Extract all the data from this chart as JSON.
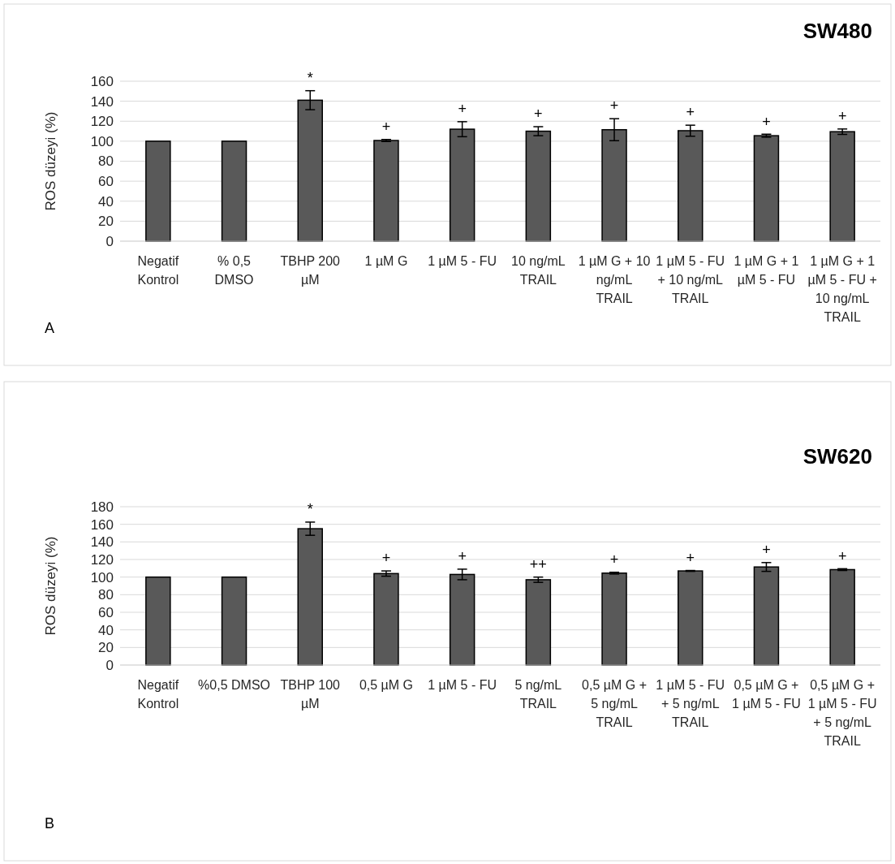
{
  "chart_data": [
    {
      "type": "bar",
      "title": "SW480",
      "subtitle": "A",
      "ylabel": "ROS düzeyi (%)",
      "categories": [
        "Negatif Kontrol",
        "% 0,5 DMSO",
        "TBHP 200 µM",
        "1 µM G",
        "1 µM 5 - FU",
        "10 ng/mL TRAIL",
        "1 µM G + 10 ng/mL TRAIL",
        "1 µM 5 - FU + 10 ng/mL TRAIL",
        "1 µM G + 1 µM 5 - FU",
        "1 µM G + 1 µM 5 - FU + 10 ng/mL TRAIL"
      ],
      "values": [
        100,
        100,
        141,
        100.7,
        112,
        110,
        111.5,
        110.5,
        105.5,
        109.5
      ],
      "errors": [
        null,
        null,
        9.5,
        1,
        7.5,
        4.5,
        11,
        5.5,
        1.5,
        2.7
      ],
      "color": "#595959",
      "ylim": [
        0,
        160
      ],
      "yticks": [
        0,
        20,
        40,
        60,
        80,
        100,
        120,
        140,
        160
      ],
      "grid": "y",
      "annotations": [
        "*",
        "+",
        "+",
        "+",
        "+",
        "+",
        "+",
        "+"
      ]
    },
    {
      "type": "bar",
      "title": "SW620",
      "subtitle": "B",
      "ylabel": "ROS düzeyi (%)",
      "categories": [
        "Negatif Kontrol",
        "%0,5 DMSO",
        "TBHP 100 µM",
        "0,5 µM G",
        "1 µM 5 - FU",
        "5 ng/mL TRAIL",
        "0,5 µM G + 5 ng/mL TRAIL",
        "1 µM 5 - FU + 5 ng/mL TRAIL",
        "0,5 µM G + 1 µM 5 - FU",
        "0,5 µM G + 1 µM 5 - FU + 5 ng/mL TRAIL"
      ],
      "values": [
        100,
        100,
        155,
        104,
        103,
        97,
        104.5,
        107,
        111.5,
        108.5
      ],
      "errors": [
        null,
        null,
        7.5,
        3,
        6,
        3,
        1,
        0.5,
        5,
        1
      ],
      "color": "#595959",
      "ylim": [
        0,
        180
      ],
      "yticks": [
        0,
        20,
        40,
        60,
        80,
        100,
        120,
        140,
        160,
        180
      ],
      "grid": "y",
      "annotations": [
        "*",
        "+",
        "+",
        "++",
        "+",
        "+",
        "+",
        "+"
      ]
    }
  ]
}
